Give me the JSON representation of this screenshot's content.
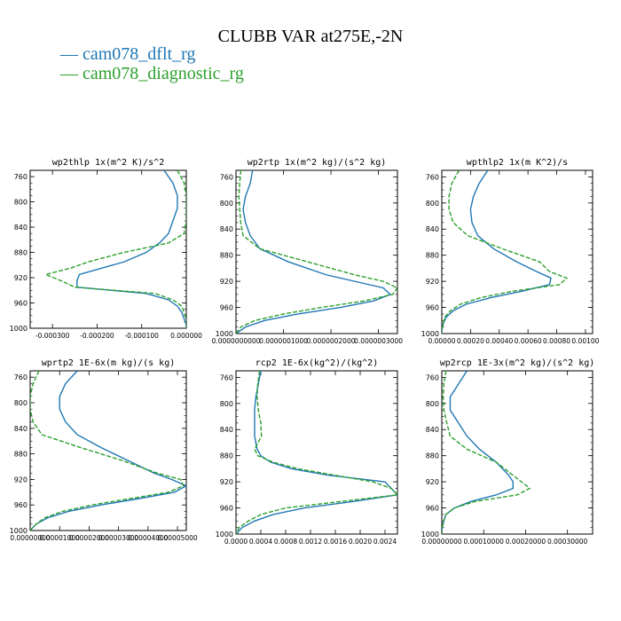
{
  "title": "CLUBB VAR at275E,-2N",
  "legend": [
    {
      "dash": "—",
      "label": "cam078_dflt_rg",
      "color": "#1f77b4"
    },
    {
      "dash": "—",
      "label": "cam078_diagnostic_rg",
      "color": "#2ca02c"
    }
  ],
  "chart_data": [
    {
      "type": "line",
      "title": "wp2thlp   1x(m^2 K)/s^2",
      "xticks": [
        "-0.000300",
        "-0.000200",
        "-0.000100",
        "0.000000"
      ],
      "xlim": [
        -0.00035,
        0.0
      ],
      "yticks": [
        760,
        800,
        840,
        880,
        920,
        960,
        1000
      ],
      "ylim": [
        750,
        1000
      ],
      "y": [
        750,
        770,
        790,
        810,
        830,
        850,
        865,
        880,
        895,
        905,
        915,
        925,
        935,
        945,
        955,
        965,
        975,
        985,
        995,
        1000
      ],
      "series": [
        {
          "name": "cam078_dflt_rg",
          "x": [
            -5e-05,
            -3e-05,
            -2e-05,
            -2e-05,
            -3e-05,
            -4e-05,
            -6e-05,
            -9e-05,
            -0.00014,
            -0.00019,
            -0.00024,
            -0.000245,
            -0.000245,
            -9e-05,
            -4e-05,
            -2e-05,
            -1e-05,
            -5e-06,
            0.0,
            0.0
          ]
        },
        {
          "name": "cam078_diagnostic_rg",
          "x": [
            -2e-05,
            -5e-06,
            0.0,
            0.0,
            0.0,
            -5e-06,
            -4e-05,
            -0.00014,
            -0.00022,
            -0.00026,
            -0.000315,
            -0.00028,
            -0.00025,
            -7e-05,
            -3e-05,
            -1e-05,
            -5e-06,
            0.0,
            0.0,
            0.0
          ]
        }
      ]
    },
    {
      "type": "line",
      "title": "wp2rtp   1x(m^2 kg)/(s^2 kg)",
      "xticks": [
        "0.0000000000",
        "0.0000001000",
        "0.0000002000",
        "0.0000003000"
      ],
      "xlim": [
        0.0,
        3.4e-07
      ],
      "yticks": [
        760,
        800,
        840,
        880,
        920,
        960,
        1000
      ],
      "ylim": [
        750,
        1000
      ],
      "y": [
        750,
        770,
        790,
        810,
        830,
        850,
        870,
        890,
        910,
        920,
        930,
        940,
        950,
        960,
        970,
        980,
        990,
        1000
      ],
      "series": [
        {
          "name": "cam078_dflt_rg",
          "x": [
            3.5e-08,
            3e-08,
            2e-08,
            1.5e-08,
            2e-08,
            3e-08,
            5e-08,
            1.1e-07,
            1.9e-07,
            2.5e-07,
            3.1e-07,
            3.25e-07,
            2.9e-07,
            2.2e-07,
            1.3e-07,
            6e-08,
            2e-08,
            0.0
          ]
        },
        {
          "name": "cam078_diagnostic_rg",
          "x": [
            1e-08,
            8e-09,
            6e-09,
            8e-09,
            1e-08,
            1.5e-08,
            5e-08,
            1.5e-07,
            2.5e-07,
            3.1e-07,
            3.4e-07,
            3.3e-07,
            2.7e-07,
            1.8e-07,
            1e-07,
            4e-08,
            1e-08,
            0.0
          ]
        }
      ]
    },
    {
      "type": "line",
      "title": "wpthlp2   1x(m K^2)/s",
      "xticks": [
        "0.00000",
        "0.00020",
        "0.00040",
        "0.00060",
        "0.00080",
        "0.00100"
      ],
      "xlim": [
        0.0,
        0.00105
      ],
      "yticks": [
        760,
        800,
        840,
        880,
        920,
        960,
        1000
      ],
      "ylim": [
        750,
        1000
      ],
      "y": [
        750,
        770,
        790,
        810,
        830,
        850,
        870,
        890,
        905,
        915,
        925,
        935,
        945,
        955,
        965,
        975,
        985,
        995,
        1000
      ],
      "series": [
        {
          "name": "cam078_dflt_rg",
          "x": [
            0.00032,
            0.00026,
            0.00022,
            0.0002,
            0.00021,
            0.00025,
            0.00036,
            0.00052,
            0.00066,
            0.00076,
            0.00075,
            0.00056,
            0.00034,
            0.00017,
            8e-05,
            3e-05,
            1e-05,
            0.0,
            0.0
          ]
        },
        {
          "name": "cam078_diagnostic_rg",
          "x": [
            0.00012,
            7e-05,
            5e-05,
            5e-05,
            8e-05,
            0.00018,
            0.00042,
            0.00068,
            0.00075,
            0.00087,
            0.00082,
            0.0005,
            0.00027,
            0.00013,
            6e-05,
            2e-05,
            1e-05,
            0.0,
            0.0
          ]
        }
      ]
    },
    {
      "type": "line",
      "title": "wprtp2   1E-6x(m kg)/(s kg)",
      "xticks": [
        "0.00000000",
        "0.00001000",
        "0.00002000",
        "0.00003000",
        "0.00004000",
        "0.00005000"
      ],
      "xlim": [
        0.0,
        5.3e-05
      ],
      "yticks": [
        760,
        800,
        840,
        880,
        920,
        960,
        1000
      ],
      "ylim": [
        750,
        1000
      ],
      "y": [
        750,
        770,
        790,
        810,
        830,
        850,
        870,
        890,
        910,
        920,
        930,
        940,
        950,
        960,
        970,
        980,
        990,
        1000
      ],
      "series": [
        {
          "name": "cam078_dflt_rg",
          "x": [
            1.6e-05,
            1.2e-05,
            1e-05,
            1e-05,
            1.2e-05,
            1.6e-05,
            2.4e-05,
            3.3e-05,
            4.2e-05,
            4.8e-05,
            5.3e-05,
            4.9e-05,
            3.7e-05,
            2.4e-05,
            1.3e-05,
            6e-06,
            2e-06,
            0.0
          ]
        },
        {
          "name": "cam078_diagnostic_rg",
          "x": [
            3e-06,
            1e-06,
            0.0,
            0.0,
            1e-06,
            4e-06,
            1.7e-05,
            3.1e-05,
            4.3e-05,
            5.1e-05,
            5.2e-05,
            4.7e-05,
            3.4e-05,
            2.1e-05,
            1.1e-05,
            5e-06,
            2e-06,
            0.0
          ]
        }
      ]
    },
    {
      "type": "line",
      "title": "rcp2   1E-6x(kg^2)/(kg^2)",
      "xticks": [
        "0.0000",
        "0.0004",
        "0.0008",
        "0.0012",
        "0.0016",
        "0.0020",
        "0.0024"
      ],
      "xlim": [
        0.0,
        0.0026
      ],
      "yticks": [
        760,
        800,
        840,
        880,
        920,
        960,
        1000
      ],
      "ylim": [
        750,
        1000
      ],
      "y": [
        750,
        770,
        790,
        810,
        830,
        850,
        870,
        880,
        890,
        900,
        910,
        920,
        930,
        940,
        950,
        960,
        970,
        980,
        990,
        1000
      ],
      "series": [
        {
          "name": "cam078_dflt_rg",
          "x": [
            0.0004,
            0.00036,
            0.00032,
            0.0003,
            0.0003,
            0.0003,
            0.00034,
            0.0004,
            0.00056,
            0.0009,
            0.0015,
            0.0024,
            0.0025,
            0.0026,
            0.0019,
            0.0011,
            0.0006,
            0.0003,
            0.0001,
            0.0
          ]
        },
        {
          "name": "cam078_diagnostic_rg",
          "x": [
            0.00038,
            0.00035,
            0.00034,
            0.00036,
            0.0004,
            0.00041,
            0.0003,
            0.00035,
            0.0006,
            0.001,
            0.0016,
            0.0022,
            0.0025,
            0.0026,
            0.0017,
            0.0008,
            0.0004,
            0.0002,
            5e-05,
            0.0
          ]
        }
      ]
    },
    {
      "type": "line",
      "title": "wp2rcp   1E-3x(m^2 kg)/(s^2 kg)",
      "xticks": [
        "0.00000000",
        "0.00010000",
        "0.00020000",
        "0.00030000"
      ],
      "xlim": [
        0.0,
        0.00036
      ],
      "yticks": [
        760,
        800,
        840,
        880,
        920,
        960,
        1000
      ],
      "ylim": [
        750,
        1000
      ],
      "y": [
        750,
        770,
        790,
        810,
        830,
        850,
        870,
        890,
        910,
        920,
        930,
        940,
        950,
        960,
        970,
        980,
        990,
        1000
      ],
      "series": [
        {
          "name": "cam078_dflt_rg",
          "x": [
            6e-05,
            4e-05,
            2e-05,
            2e-05,
            4e-05,
            6e-05,
            9e-05,
            0.00013,
            0.00016,
            0.00017,
            0.00017,
            0.00013,
            7e-05,
            3e-05,
            1e-05,
            5e-06,
            1e-06,
            0.0
          ]
        },
        {
          "name": "cam078_diagnostic_rg",
          "x": [
            1e-05,
            5e-06,
            3e-06,
            5e-06,
            1.2e-05,
            2e-05,
            6e-05,
            0.00013,
            0.00017,
            0.00019,
            0.00021,
            0.00018,
            8e-05,
            3e-05,
            1e-05,
            4e-06,
            1e-06,
            0.0
          ]
        }
      ]
    }
  ]
}
